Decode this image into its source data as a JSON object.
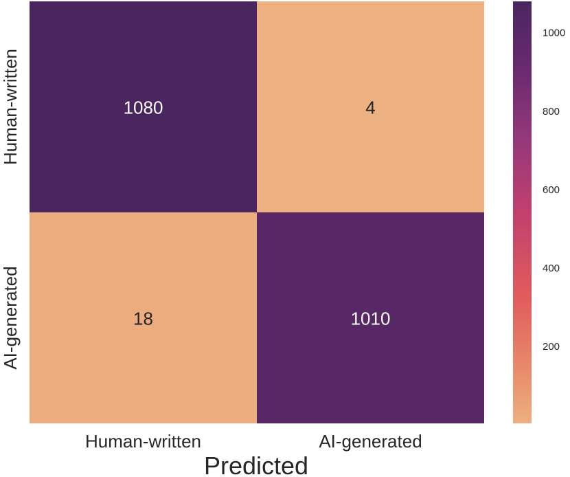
{
  "chart_data": {
    "type": "heatmap",
    "title": "",
    "xlabel": "Predicted",
    "ylabel": "",
    "x_categories": [
      "Human-written",
      "AI-generated"
    ],
    "y_categories": [
      "Human-written",
      "AI-generated"
    ],
    "values": [
      [
        1080,
        4
      ],
      [
        18,
        1010
      ]
    ],
    "colormap": "flare",
    "color_range": [
      4,
      1080
    ],
    "colorbar_ticks": [
      200,
      400,
      600,
      800,
      1000
    ],
    "colorbar_tick_labels": [
      "200",
      "400",
      "600",
      "800",
      "1000"
    ],
    "colors": {
      "low": "#EDAF80",
      "high": "#4A2560",
      "label_light": "#ffffff",
      "label_dark": "#222222"
    }
  }
}
